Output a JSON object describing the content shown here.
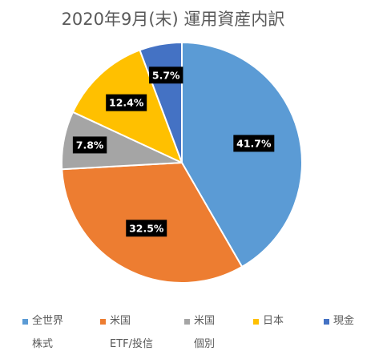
{
  "chart_data": {
    "type": "pie",
    "title": "2020年9月(末) 運用資産内訳",
    "categories": [
      "全世界株式",
      "米国ETF/投信",
      "米国個別",
      "日本",
      "現金"
    ],
    "values": [
      41.7,
      32.5,
      7.8,
      12.4,
      5.7
    ],
    "labels": [
      "41.7%",
      "32.5%",
      "7.8%",
      "12.4%",
      "5.7%"
    ],
    "colors": [
      "#5B9BD5",
      "#ED7D31",
      "#A5A5A5",
      "#FFC000",
      "#4472C4"
    ],
    "legend_position": "bottom"
  },
  "legend": [
    {
      "line1": "全世界",
      "line2": "株式",
      "color": "#5B9BD5"
    },
    {
      "line1": "米国",
      "line2": "ETF/投信",
      "color": "#ED7D31"
    },
    {
      "line1": "米国",
      "line2": "個別",
      "color": "#A5A5A5"
    },
    {
      "line1": "日本",
      "line2": "",
      "color": "#FFC000"
    },
    {
      "line1": "現金",
      "line2": "",
      "color": "#4472C4"
    }
  ]
}
